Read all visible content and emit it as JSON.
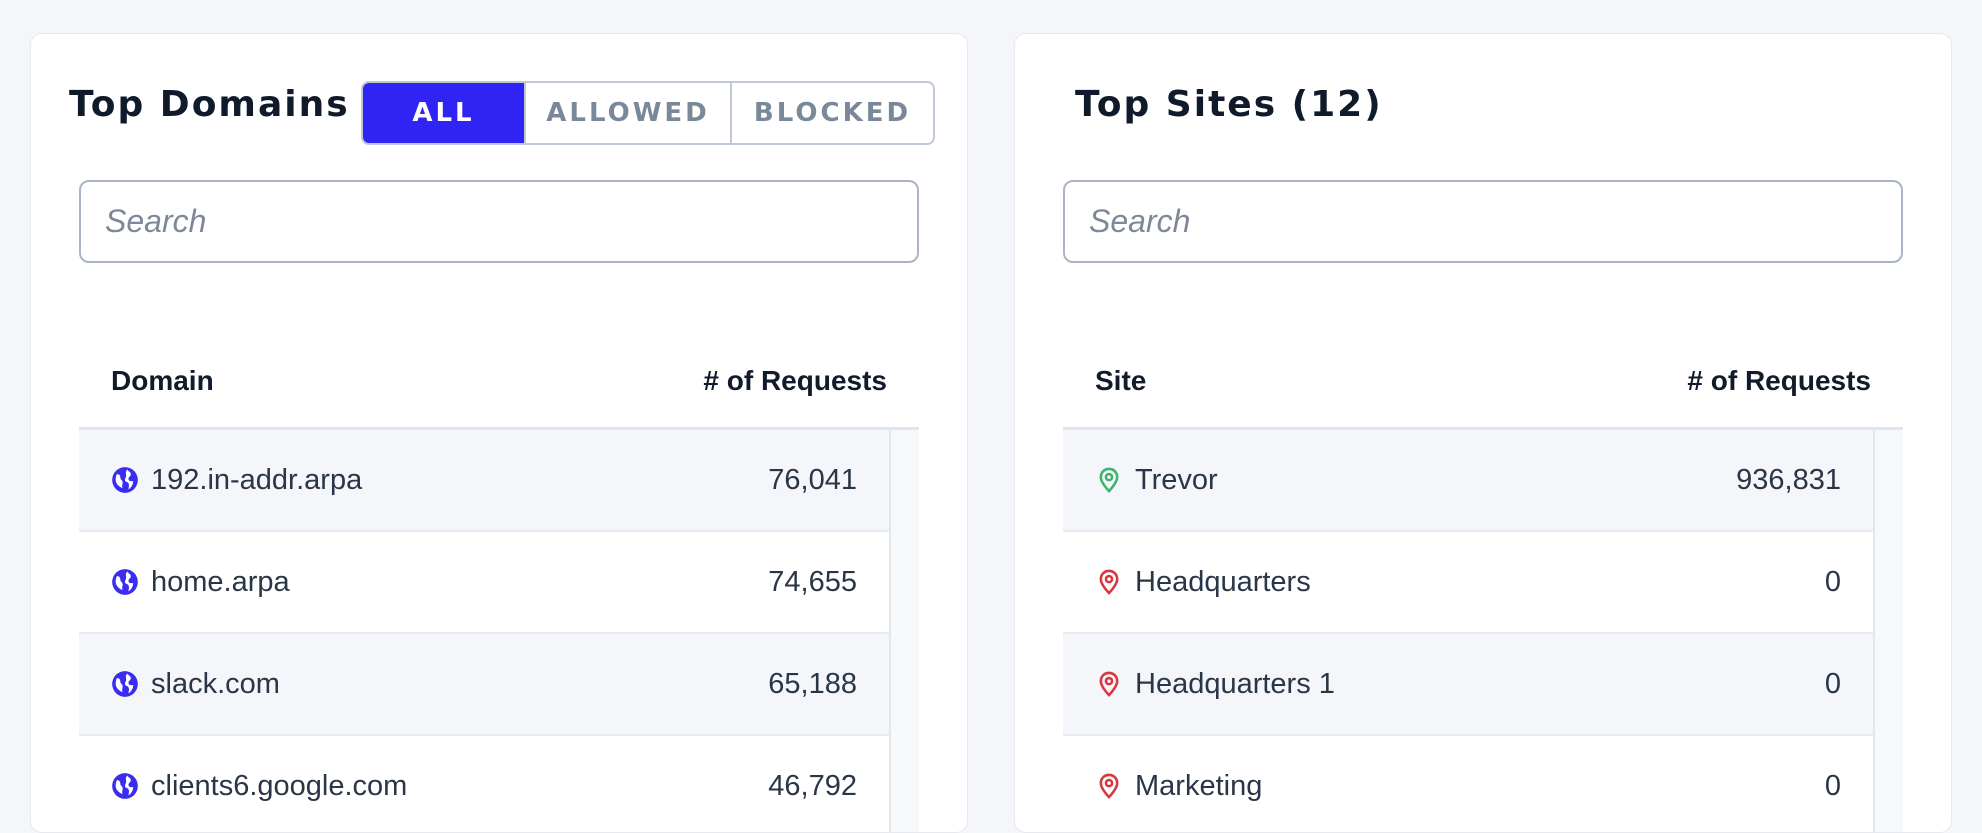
{
  "domains": {
    "title": "Top Domains",
    "filters": [
      "ALL",
      "ALLOWED",
      "BLOCKED"
    ],
    "search_placeholder": "Search",
    "col_name": "Domain",
    "col_requests": "# of Requests",
    "rows": [
      {
        "name": "192.in-addr.arpa",
        "requests": "76,041"
      },
      {
        "name": "home.arpa",
        "requests": "74,655"
      },
      {
        "name": "slack.com",
        "requests": "65,188"
      },
      {
        "name": "clients6.google.com",
        "requests": "46,792"
      }
    ],
    "icon": "globe-icon",
    "icon_color": "#3a2cf0"
  },
  "sites": {
    "title": "Top Sites (12)",
    "search_placeholder": "Search",
    "col_name": "Site",
    "col_requests": "# of Requests",
    "rows": [
      {
        "name": "Trevor",
        "requests": "936,831",
        "status": "online"
      },
      {
        "name": "Headquarters",
        "requests": "0",
        "status": "offline"
      },
      {
        "name": "Headquarters 1",
        "requests": "0",
        "status": "offline"
      },
      {
        "name": "Marketing",
        "requests": "0",
        "status": "offline"
      }
    ],
    "icon": "location-pin-icon",
    "status_colors": {
      "online": "#3db36b",
      "offline": "#d9363e"
    }
  },
  "colors": {
    "accent": "#3024f5"
  }
}
